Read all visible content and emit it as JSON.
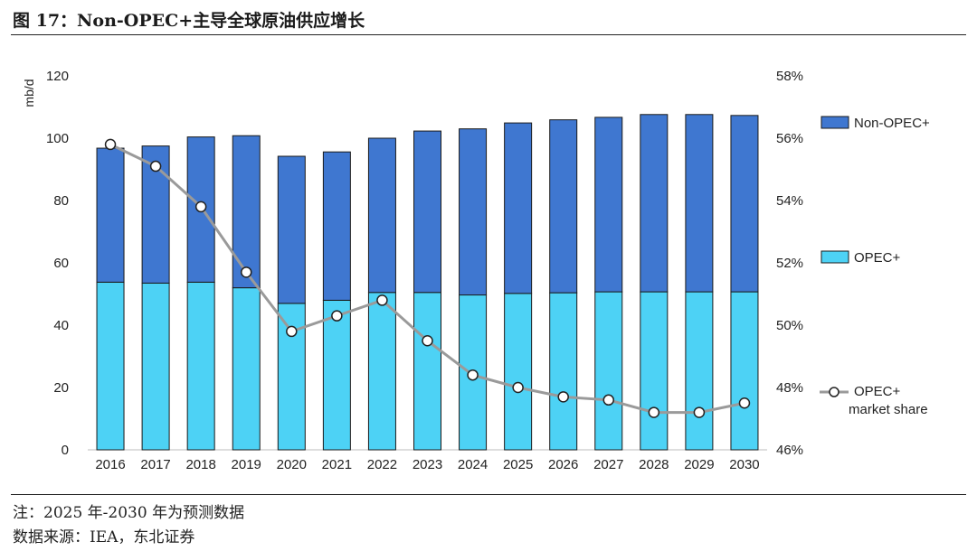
{
  "title": "图 17：Non-OPEC+主导全球原油供应增长",
  "note": "注：2025 年-2030 年为预测数据",
  "source": "数据来源：IEA，东北证券",
  "colors": {
    "non_opec": "#3f77d0",
    "opec": "#4dd2f5",
    "share_line": "#9a9a9a"
  },
  "chart_data": {
    "type": "bar",
    "stacked": true,
    "categories": [
      "2016",
      "2017",
      "2018",
      "2019",
      "2020",
      "2021",
      "2022",
      "2023",
      "2024",
      "2025",
      "2026",
      "2027",
      "2028",
      "2029",
      "2030"
    ],
    "series": [
      {
        "name": "OPEC+",
        "axis": "left",
        "values": [
          53.8,
          53.5,
          53.8,
          52.0,
          47.0,
          48.0,
          50.5,
          50.5,
          49.7,
          50.2,
          50.4,
          50.7,
          50.7,
          50.7,
          50.7
        ]
      },
      {
        "name": "Non-OPEC+",
        "axis": "left",
        "values": [
          43.0,
          44.0,
          46.6,
          48.8,
          47.2,
          47.6,
          49.5,
          51.8,
          53.3,
          54.7,
          55.5,
          56.0,
          56.9,
          56.9,
          56.6
        ]
      },
      {
        "name": "OPEC+ market share",
        "type": "line",
        "axis": "right",
        "values": [
          55.8,
          55.1,
          53.8,
          51.7,
          49.8,
          50.3,
          50.8,
          49.5,
          48.4,
          48.0,
          47.7,
          47.6,
          47.2,
          47.2,
          47.5
        ]
      }
    ],
    "legend": [
      {
        "label": "Non-OPEC+",
        "kind": "bar",
        "series": "Non-OPEC+"
      },
      {
        "label": "OPEC+",
        "kind": "bar",
        "series": "OPEC+"
      },
      {
        "label": [
          "OPEC+",
          "market share"
        ],
        "kind": "line",
        "series": "OPEC+ market share"
      }
    ],
    "legend_position": "right",
    "ylabel": "mb/d",
    "ylim": [
      0,
      120
    ],
    "yticks": [
      0,
      20,
      40,
      60,
      80,
      100,
      120
    ],
    "y2lim": [
      46,
      58
    ],
    "y2ticks": [
      "46%",
      "48%",
      "50%",
      "52%",
      "54%",
      "56%",
      "58%"
    ],
    "grid": false
  }
}
